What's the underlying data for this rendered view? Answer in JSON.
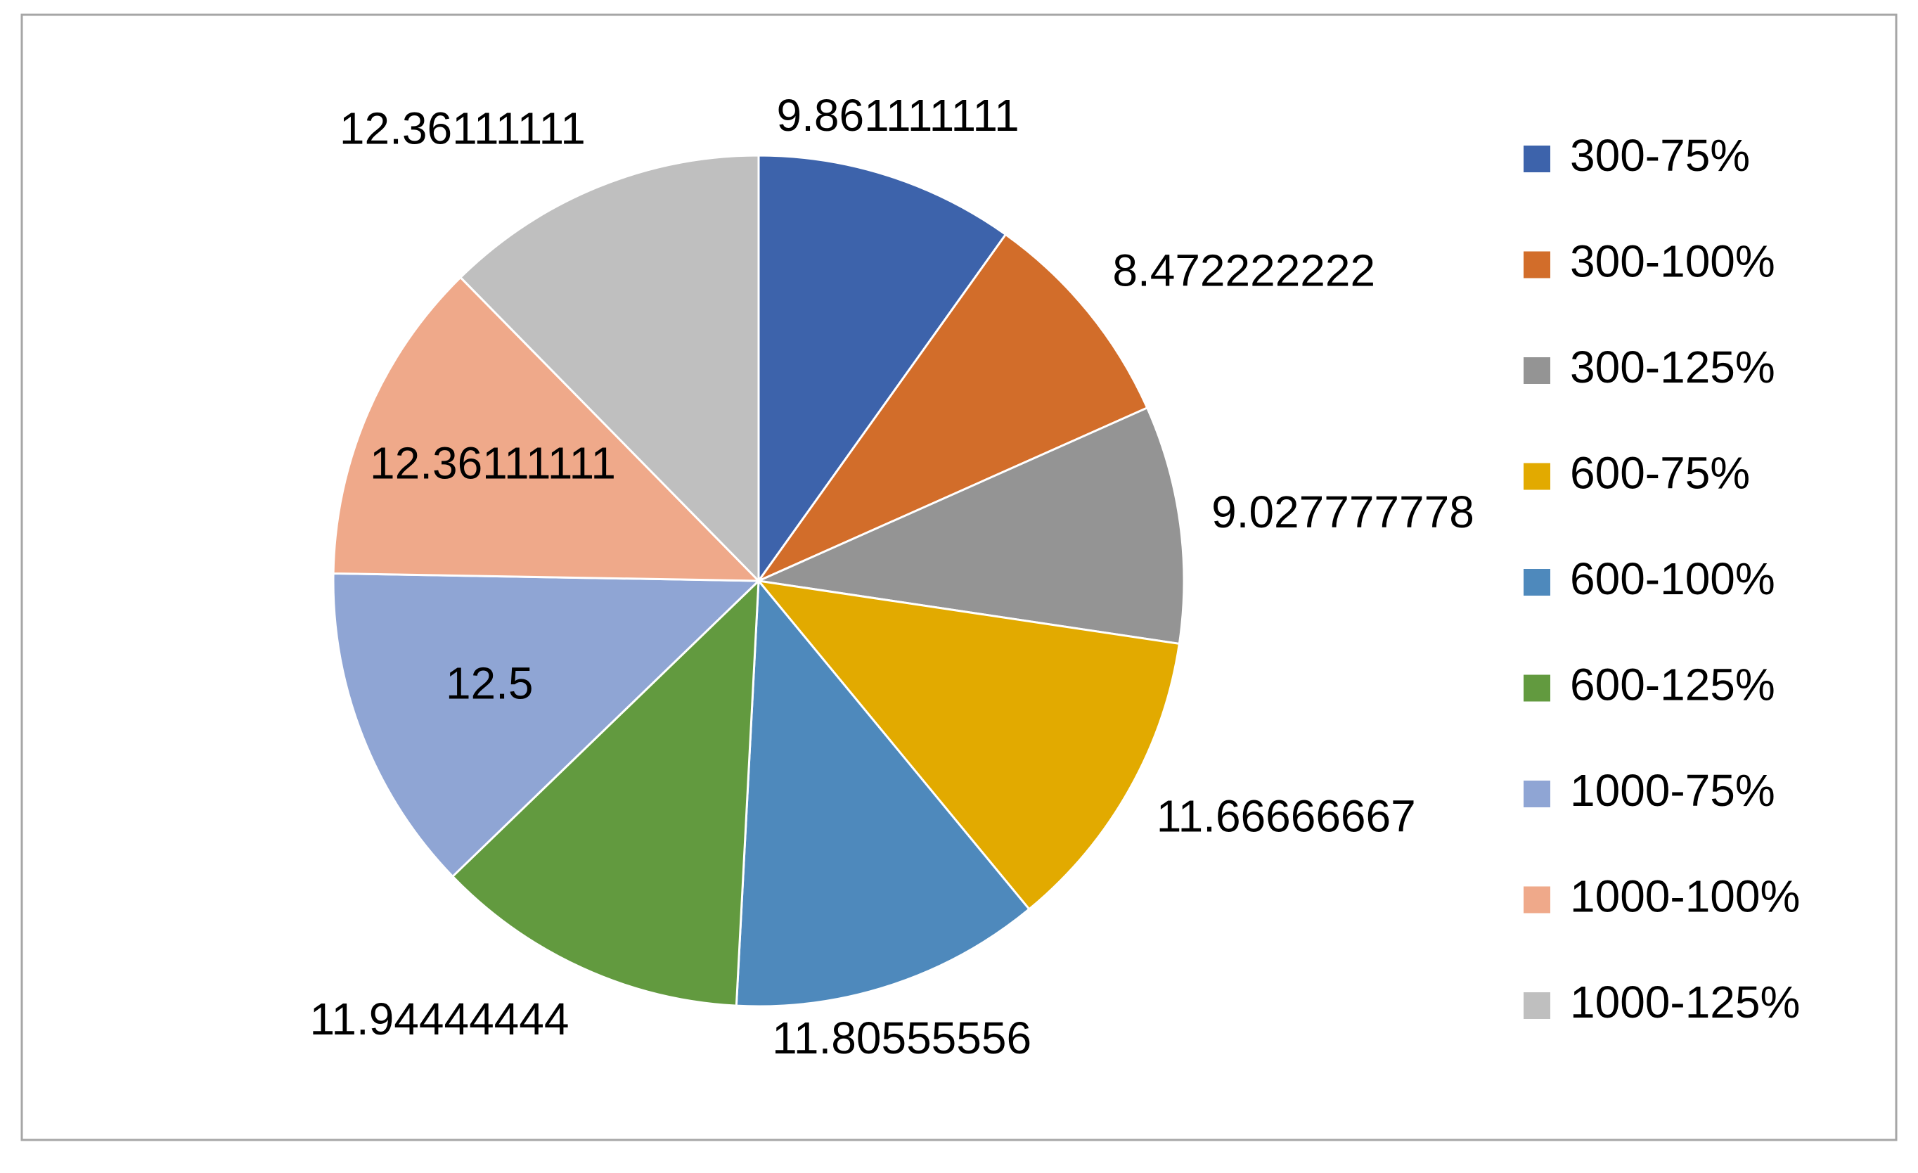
{
  "chart_data": {
    "type": "pie",
    "categories": [
      "300-75%",
      "300-100%",
      "300-125%",
      "600-75%",
      "600-100%",
      "600-125%",
      "1000-75%",
      "1000-100%",
      "1000-125%"
    ],
    "values": [
      9.861111111,
      8.472222222,
      9.027777778,
      11.66666667,
      11.80555556,
      11.94444444,
      12.5,
      12.36111111,
      12.36111111
    ],
    "colors": [
      "#3d63ab",
      "#d26d2a",
      "#949494",
      "#e2aa00",
      "#4e89bc",
      "#629a3f",
      "#8fa5d4",
      "#efa98a",
      "#bfbfbf"
    ],
    "legend": "right"
  }
}
